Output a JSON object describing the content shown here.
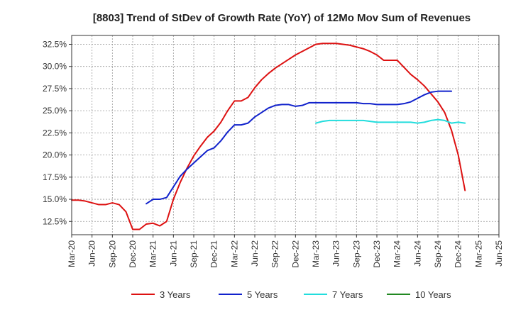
{
  "chart_data": {
    "type": "line",
    "title": "[8803]  Trend of StDev of Growth Rate (YoY) of 12Mo Mov Sum of Revenues",
    "xlabel": "",
    "ylabel": "",
    "x_ticks": [
      "Mar-20",
      "Jun-20",
      "Sep-20",
      "Dec-20",
      "Mar-21",
      "Jun-21",
      "Sep-21",
      "Dec-21",
      "Mar-22",
      "Jun-22",
      "Sep-22",
      "Dec-22",
      "Mar-23",
      "Jun-23",
      "Sep-23",
      "Dec-23",
      "Mar-24",
      "Jun-24",
      "Sep-24",
      "Dec-24",
      "Mar-25",
      "Jun-25"
    ],
    "y_ticks": [
      "12.5%",
      "15.0%",
      "17.5%",
      "20.0%",
      "22.5%",
      "25.0%",
      "27.5%",
      "30.0%",
      "32.5%"
    ],
    "ylim": [
      11.0,
      33.5
    ],
    "grid": true,
    "legend_position": "bottom",
    "series": [
      {
        "name": "3 Years",
        "color": "#dd1111",
        "start_index": 0,
        "values": [
          14.9,
          14.9,
          14.8,
          14.6,
          14.4,
          14.4,
          14.6,
          14.4,
          13.6,
          11.6,
          11.6,
          12.2,
          12.3,
          12.0,
          12.5,
          15.0,
          16.9,
          18.5,
          19.9,
          21.0,
          22.0,
          22.7,
          23.7,
          25.0,
          26.1,
          26.1,
          26.5,
          27.6,
          28.5,
          29.2,
          29.8,
          30.3,
          30.8,
          31.3,
          31.7,
          32.1,
          32.5,
          32.6,
          32.6,
          32.6,
          32.5,
          32.4,
          32.2,
          32.0,
          31.7,
          31.3,
          30.7,
          30.7,
          30.7,
          29.9,
          29.1,
          28.5,
          27.8,
          26.9,
          26.0,
          24.8,
          22.8,
          20.0,
          16.0
        ]
      },
      {
        "name": "5 Years",
        "color": "#1122cc",
        "start_index": 11,
        "values": [
          14.5,
          15.0,
          15.0,
          15.2,
          16.4,
          17.6,
          18.4,
          19.1,
          19.8,
          20.5,
          20.8,
          21.6,
          22.6,
          23.4,
          23.4,
          23.6,
          24.3,
          24.8,
          25.3,
          25.6,
          25.7,
          25.7,
          25.5,
          25.6,
          25.9,
          25.9,
          25.9,
          25.9,
          25.9,
          25.9,
          25.9,
          25.9,
          25.8,
          25.8,
          25.7,
          25.7,
          25.7,
          25.7,
          25.8,
          26.0,
          26.4,
          26.8,
          27.1,
          27.2,
          27.2,
          27.2
        ]
      },
      {
        "name": "7 Years",
        "color": "#22dddd",
        "start_index": 36,
        "values": [
          23.6,
          23.8,
          23.9,
          23.9,
          23.9,
          23.9,
          23.9,
          23.9,
          23.8,
          23.7,
          23.7,
          23.7,
          23.7,
          23.7,
          23.7,
          23.6,
          23.7,
          23.9,
          24.0,
          23.9,
          23.6,
          23.7,
          23.6
        ]
      },
      {
        "name": "10 Years",
        "color": "#228822",
        "start_index": 0,
        "values": []
      }
    ]
  }
}
